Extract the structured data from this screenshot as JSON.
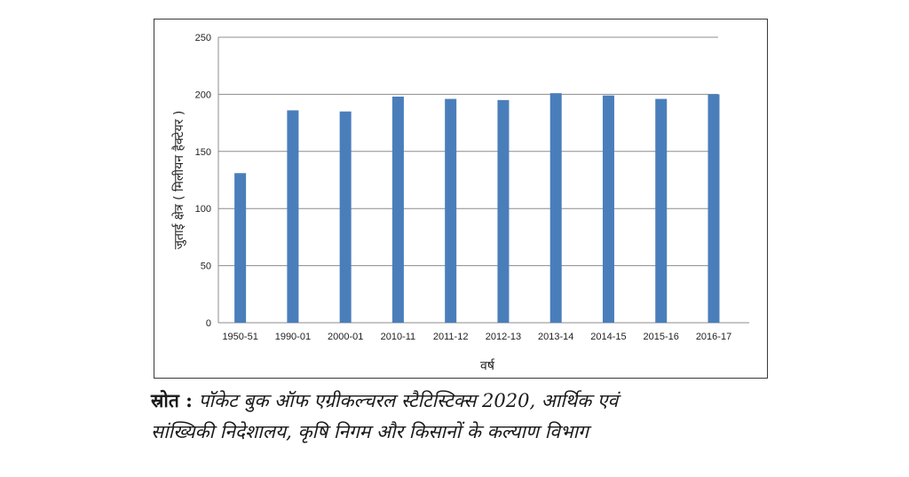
{
  "chart_data": {
    "type": "bar",
    "categories": [
      "1950-51",
      "1990-01",
      "2000-01",
      "2010-11",
      "2011-12",
      "2012-13",
      "2013-14",
      "2014-15",
      "2015-16",
      "2016-17"
    ],
    "values": [
      131,
      186,
      185,
      198,
      196,
      195,
      201,
      199,
      196,
      200
    ],
    "xlabel": "वर्ष",
    "ylabel": "जुताई क्षेत्र ( मिलीयन हैक्टेयर )",
    "ylim": [
      0,
      250
    ],
    "yticks": [
      0,
      50,
      100,
      150,
      200,
      250
    ],
    "grid": true,
    "legend": "none",
    "bar_color": "#4a7ebb"
  },
  "source": {
    "label": "स्रोत :",
    "line1_text": "पॉकेट बुक ऑफ एग्रीकल्चरल स्टैटिस्टिक्स 2020, आर्थिक एवं",
    "line2_text": "सांख्यिकी निदेशालय, कृषि निगम और किसानों के कल्याण विभाग"
  }
}
